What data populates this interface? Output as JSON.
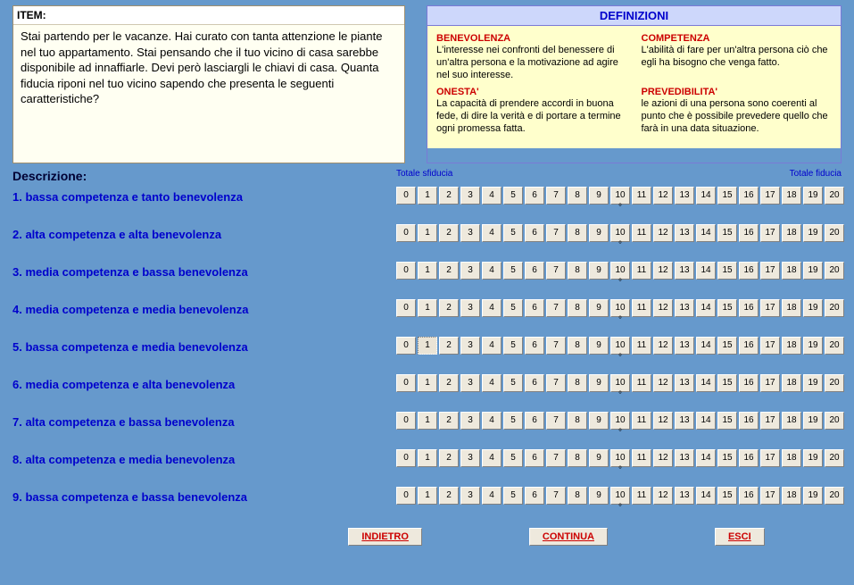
{
  "item": {
    "header": "ITEM:",
    "text": "Stai partendo per le vacanze. Hai curato con tanta attenzione le piante nel tuo appartamento. Stai pensando che il tuo vicino di casa sarebbe disponibile ad innaffiarle. Devi però lasciargli le chiavi di casa. Quanta fiducia riponi nel tuo vicino sapendo che presenta le seguenti caratteristiche?"
  },
  "definitions": {
    "header": "DEFINIZIONI",
    "items": [
      {
        "term": "BENEVOLENZA",
        "text": "L'interesse nei confronti del benessere di un'altra persona e la motivazione ad agire nel suo interesse."
      },
      {
        "term": "COMPETENZA",
        "text": "L'abilità di fare per un'altra persona ciò che egli ha bisogno che venga fatto."
      },
      {
        "term": "ONESTA'",
        "text": "La capacità di prendere accordi in buona fede, di dire la verità e di portare a termine ogni promessa fatta."
      },
      {
        "term": "PREVEDIBILITA'",
        "text": "le azioni di una persona sono coerenti al punto che è possibile prevedere quello che farà in una data situazione."
      }
    ]
  },
  "descrizione_label": "Descrizione:",
  "scale": {
    "min": 0,
    "max": 20,
    "left_label": "Totale sfiducia",
    "right_label": "Totale fiducia",
    "tick_value": 10
  },
  "rows": [
    {
      "label": "1. bassa competenza e tanto benevolenza",
      "selected": null
    },
    {
      "label": "2. alta competenza e alta benevolenza",
      "selected": null
    },
    {
      "label": "3. media competenza e bassa benevolenza",
      "selected": null
    },
    {
      "label": "4. media competenza e media benevolenza",
      "selected": null
    },
    {
      "label": "5. bassa competenza e media benevolenza",
      "selected": 1
    },
    {
      "label": "6. media competenza e alta benevolenza",
      "selected": null
    },
    {
      "label": "7. alta competenza e bassa benevolenza",
      "selected": null
    },
    {
      "label": "8. alta competenza e media benevolenza",
      "selected": null
    },
    {
      "label": "9. bassa competenza e bassa benevolenza",
      "selected": null
    }
  ],
  "buttons": {
    "back": "INDIETRO",
    "continue": "CONTINUA",
    "exit": "ESCI"
  },
  "colors": {
    "background": "#6699cc",
    "item_bg": "#fffff2",
    "def_header_bg": "#cdd7fb",
    "def_body_bg": "#ffffcc",
    "link_blue": "#0000cc",
    "term_red": "#cc0000",
    "button_face": "#eee9dd"
  }
}
